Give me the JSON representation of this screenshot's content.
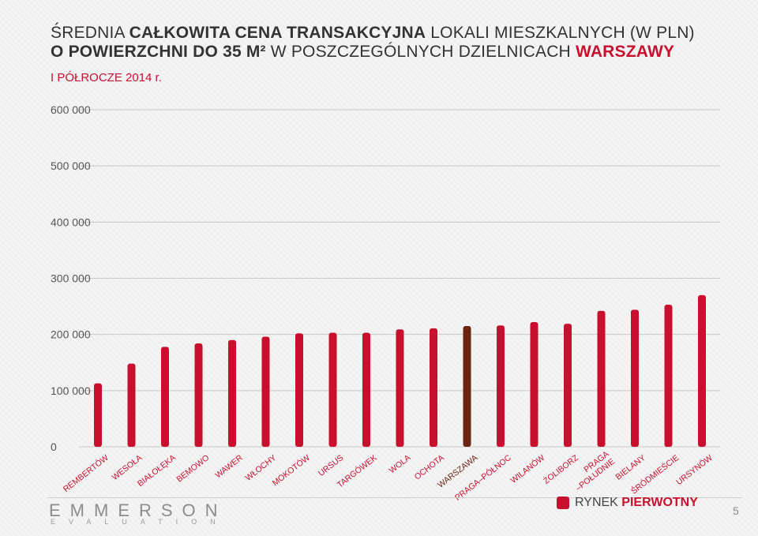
{
  "title": {
    "line1": {
      "part1": "ŚREDNIA ",
      "part2": "CAŁKOWITA CENA TRANSAKCYJNA",
      "part3": " LOKALI MIESZKALNYCH (W PLN)"
    },
    "line2": {
      "part1": "O POWIERZCHNI DO 35 M²",
      "part2": " W POSZCZEGÓLNYCH DZIELNICACH ",
      "part3": "WARSZAWY"
    },
    "subtitle": "I PÓŁROCZE 2014 r."
  },
  "colors": {
    "bar": "#c8102e",
    "highlight": "#6b2410",
    "grid": "#c8c8c8",
    "accent": "#c8102e"
  },
  "chart_data": {
    "type": "bar",
    "title": "ŚREDNIA CAŁKOWITA CENA TRANSAKCYJNA LOKALI MIESZKALNYCH (W PLN) O POWIERZCHNI DO 35 M² W POSZCZEGÓLNYCH DZIELNICACH WARSZAWY",
    "subtitle": "I PÓŁROCZE 2014 r.",
    "categories": [
      "REMBERTÓW",
      "WESOŁA",
      "BIAŁOŁĘKA",
      "BEMOWO",
      "WAWER",
      "WŁOCHY",
      "MOKOTÓW",
      "URSUS",
      "TARGÓWEK",
      "WOLA",
      "OCHOTA",
      "WARSZAWA",
      "PRAGA–PÓŁNOC",
      "WILANÓW",
      "ŻOLIBORZ",
      "PRAGA –POŁUDNIE",
      "BIELANY",
      "ŚRÓDMIEŚCIE",
      "URSYNÓW"
    ],
    "series": [
      {
        "name": "RYNEK PIERWOTNY",
        "values": [
          113000,
          148000,
          178000,
          184000,
          190000,
          196000,
          202000,
          203000,
          203000,
          209000,
          211000,
          215000,
          216000,
          222000,
          219000,
          242000,
          244000,
          253000,
          270000
        ]
      }
    ],
    "highlight_category": "WARSZAWA",
    "yticks": [
      "0",
      "100 000",
      "200 000",
      "300 000",
      "400 000",
      "500 000",
      "600 000"
    ],
    "ylim": [
      0,
      600000
    ],
    "grid": true,
    "legend_position": "bottom-right"
  },
  "legend": {
    "swatch_label_1": "RYNEK ",
    "swatch_label_2": "PIERWOTNY"
  },
  "footer": {
    "logo": "EMMERSON",
    "logo_sub": "EVALUATION",
    "page_number": "5"
  }
}
